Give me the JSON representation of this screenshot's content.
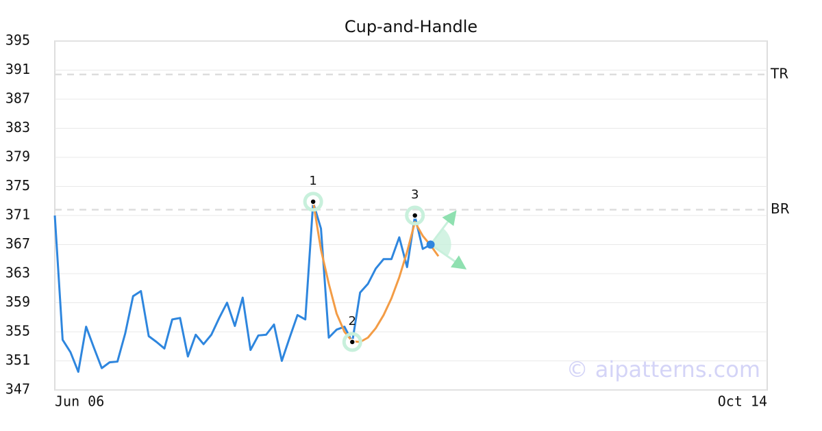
{
  "chart_data": {
    "type": "line",
    "title": "Cup-and-Handle",
    "xlim": [
      0,
      91
    ],
    "xticks": [
      {
        "value": 0,
        "label": "Jun 06"
      },
      {
        "value": 91,
        "label": "Oct 14"
      }
    ],
    "ylim": [
      347,
      395
    ],
    "yticks": [
      347,
      351,
      355,
      359,
      363,
      367,
      371,
      375,
      379,
      383,
      387,
      391,
      395
    ],
    "grid": true,
    "series": [
      {
        "color": "#2e86de",
        "x": [
          0,
          1,
          2,
          3,
          4,
          5,
          6,
          7,
          8,
          9,
          10,
          11,
          12,
          13,
          14,
          15,
          16,
          17,
          18,
          19,
          20,
          21,
          22,
          23,
          24,
          25,
          26,
          27,
          28,
          29,
          30,
          31,
          32,
          33,
          34,
          35,
          36,
          37,
          38,
          39,
          40,
          41,
          42,
          43,
          44,
          45,
          46,
          47,
          48
        ],
        "values": [
          371.0,
          353.9,
          352.2,
          349.5,
          355.7,
          352.8,
          350.0,
          350.8,
          350.9,
          354.8,
          359.9,
          360.6,
          354.4,
          353.6,
          352.7,
          356.7,
          356.9,
          351.6,
          354.6,
          353.3,
          354.6,
          356.9,
          359.0,
          355.8,
          359.7,
          352.5,
          354.5,
          354.6,
          356.0,
          351.0,
          354.2,
          357.3,
          356.7,
          372.8,
          369.2,
          354.2,
          355.3,
          355.7,
          353.6,
          360.4,
          361.6,
          363.7,
          365.0,
          365.0,
          368.0,
          363.9,
          370.9,
          366.4,
          367.0
        ]
      },
      {
        "color": "#f39c45",
        "x": [
          33,
          34,
          35,
          36,
          37,
          38,
          39,
          40,
          41,
          42,
          43,
          44,
          45,
          46,
          47,
          48,
          49
        ],
        "values": [
          372.9,
          366.3,
          361.6,
          357.5,
          355.0,
          353.7,
          353.6,
          354.2,
          355.5,
          357.3,
          359.6,
          362.5,
          366.0,
          370.1,
          368.2,
          366.9,
          365.4
        ]
      }
    ],
    "levels": [
      {
        "label": "TR",
        "value": 390.4
      },
      {
        "label": "BR",
        "value": 371.8
      }
    ],
    "pivots": [
      {
        "label": "1",
        "x": 33,
        "y": 372.9
      },
      {
        "label": "2",
        "x": 38,
        "y": 353.6
      },
      {
        "label": "3",
        "x": 46,
        "y": 371.0
      }
    ],
    "breakout": {
      "x": 48,
      "y": 367.0,
      "targets": [
        {
          "x": 51.1,
          "y": 371.4
        },
        {
          "x": 52.3,
          "y": 363.8
        }
      ]
    },
    "watermark": "© aipatterns.com"
  }
}
